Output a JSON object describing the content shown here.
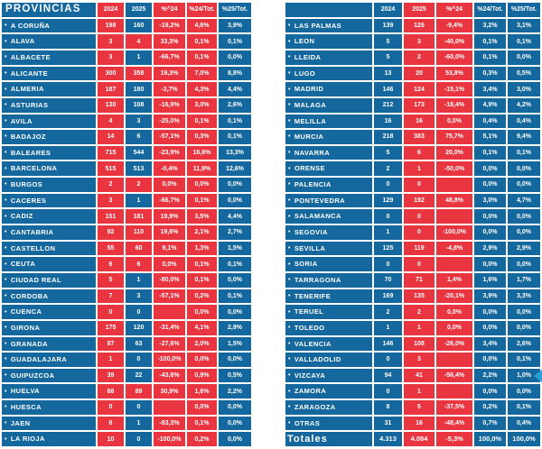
{
  "bullet": "•",
  "colors": {
    "cell_blue": "#15689d",
    "cell_red": "#e93540",
    "text": "#ffffff",
    "gridline": "#ffffff",
    "cursor_blue": "#2aa0d5"
  },
  "chart_data": [
    {
      "type": "table",
      "title": "PROVINCIAS",
      "columns": [
        "2024",
        "2025",
        "%^24",
        "%24/Tot.",
        "%25/Tot."
      ],
      "header_colors": [
        "blue",
        "red",
        "blue",
        "red",
        "red",
        "blue"
      ],
      "body_colors": {
        "y2024": "red",
        "y2025_up": "red",
        "y2025_down": "blue",
        "pct": "red",
        "share24": "red",
        "share25": "blue"
      },
      "rows": [
        {
          "name": "A CORUÑA",
          "y2024": "198",
          "y2025": "160",
          "pct": "-19,2%",
          "s24": "4,6%",
          "s25": "3,9%",
          "down": true
        },
        {
          "name": "ALAVA",
          "y2024": "3",
          "y2025": "4",
          "pct": "33,3%",
          "s24": "0,1%",
          "s25": "0,1%",
          "down": false
        },
        {
          "name": "ALBACETE",
          "y2024": "3",
          "y2025": "1",
          "pct": "-66,7%",
          "s24": "0,1%",
          "s25": "0,0%",
          "down": true
        },
        {
          "name": "ALICANTE",
          "y2024": "300",
          "y2025": "358",
          "pct": "19,3%",
          "s24": "7,0%",
          "s25": "8,8%",
          "down": false
        },
        {
          "name": "ALMERIA",
          "y2024": "187",
          "y2025": "180",
          "pct": "-3,7%",
          "s24": "4,3%",
          "s25": "4,4%",
          "down": true
        },
        {
          "name": "ASTURIAS",
          "y2024": "130",
          "y2025": "108",
          "pct": "-16,9%",
          "s24": "3,0%",
          "s25": "2,6%",
          "down": true
        },
        {
          "name": "AVILA",
          "y2024": "4",
          "y2025": "3",
          "pct": "-25,0%",
          "s24": "0,1%",
          "s25": "0,1%",
          "down": true
        },
        {
          "name": "BADAJOZ",
          "y2024": "14",
          "y2025": "6",
          "pct": "-57,1%",
          "s24": "0,3%",
          "s25": "0,1%",
          "down": true
        },
        {
          "name": "BALEARES",
          "y2024": "715",
          "y2025": "544",
          "pct": "-23,9%",
          "s24": "16,6%",
          "s25": "13,3%",
          "down": true
        },
        {
          "name": "BARCELONA",
          "y2024": "515",
          "y2025": "513",
          "pct": "-0,4%",
          "s24": "11,9%",
          "s25": "12,6%",
          "down": true
        },
        {
          "name": "BURGOS",
          "y2024": "2",
          "y2025": "2",
          "pct": "0,0%",
          "s24": "0,0%",
          "s25": "0,0%",
          "down": false
        },
        {
          "name": "CACERES",
          "y2024": "3",
          "y2025": "1",
          "pct": "-66,7%",
          "s24": "0,1%",
          "s25": "0,0%",
          "down": true
        },
        {
          "name": "CADIZ",
          "y2024": "151",
          "y2025": "181",
          "pct": "19,9%",
          "s24": "3,5%",
          "s25": "4,4%",
          "down": false
        },
        {
          "name": "CANTABRIA",
          "y2024": "92",
          "y2025": "110",
          "pct": "19,6%",
          "s24": "2,1%",
          "s25": "2,7%",
          "down": false
        },
        {
          "name": "CASTELLON",
          "y2024": "55",
          "y2025": "60",
          "pct": "9,1%",
          "s24": "1,3%",
          "s25": "1,5%",
          "down": false
        },
        {
          "name": "CEUTA",
          "y2024": "6",
          "y2025": "6",
          "pct": "0,0%",
          "s24": "0,1%",
          "s25": "0,1%",
          "down": false
        },
        {
          "name": "CIUDAD REAL",
          "y2024": "5",
          "y2025": "1",
          "pct": "-80,0%",
          "s24": "0,1%",
          "s25": "0,0%",
          "down": true
        },
        {
          "name": "CORDOBA",
          "y2024": "7",
          "y2025": "3",
          "pct": "-57,1%",
          "s24": "0,2%",
          "s25": "0,1%",
          "down": true
        },
        {
          "name": "CUENCA",
          "y2024": "0",
          "y2025": "0",
          "pct": "",
          "s24": "0,0%",
          "s25": "0,0%",
          "down": true
        },
        {
          "name": "GIRONA",
          "y2024": "175",
          "y2025": "120",
          "pct": "-31,4%",
          "s24": "4,1%",
          "s25": "2,9%",
          "down": true
        },
        {
          "name": "GRANADA",
          "y2024": "87",
          "y2025": "63",
          "pct": "-27,6%",
          "s24": "2,0%",
          "s25": "1,5%",
          "down": true
        },
        {
          "name": "GUADALAJARA",
          "y2024": "1",
          "y2025": "0",
          "pct": "-100,0%",
          "s24": "0,0%",
          "s25": "0,0%",
          "down": true
        },
        {
          "name": "GUIPUZCOA",
          "y2024": "39",
          "y2025": "22",
          "pct": "-43,6%",
          "s24": "0,9%",
          "s25": "0,5%",
          "down": true
        },
        {
          "name": "HUELVA",
          "y2024": "68",
          "y2025": "89",
          "pct": "30,9%",
          "s24": "1,6%",
          "s25": "2,2%",
          "down": false
        },
        {
          "name": "HUESCA",
          "y2024": "0",
          "y2025": "0",
          "pct": "",
          "s24": "0,0%",
          "s25": "0,0%",
          "down": true
        },
        {
          "name": "JAEN",
          "y2024": "6",
          "y2025": "1",
          "pct": "-83,3%",
          "s24": "0,1%",
          "s25": "0,0%",
          "down": true
        },
        {
          "name": "LA RIOJA",
          "y2024": "10",
          "y2025": "0",
          "pct": "-100,0%",
          "s24": "0,2%",
          "s25": "0,0%",
          "down": true
        }
      ]
    },
    {
      "type": "table",
      "title": "",
      "columns": [
        "2024",
        "2025",
        "%^24",
        "%24/Tot.",
        "%25/Tot."
      ],
      "header_colors": [
        "blue",
        "blue",
        "red",
        "red",
        "blue",
        "blue"
      ],
      "body_colors": {
        "y2024": "blue",
        "y2025_up": "red",
        "y2025_down": "red",
        "pct": "red",
        "share24": "blue",
        "share25": "blue"
      },
      "rows": [
        {
          "name": "LAS PALMAS",
          "y2024": "139",
          "y2025": "126",
          "pct": "-9,4%",
          "s24": "3,2%",
          "s25": "3,1%",
          "down": true
        },
        {
          "name": "LEON",
          "y2024": "5",
          "y2025": "3",
          "pct": "-40,0%",
          "s24": "0,1%",
          "s25": "0,1%",
          "down": true
        },
        {
          "name": "LLEIDA",
          "y2024": "5",
          "y2025": "2",
          "pct": "-60,0%",
          "s24": "0,1%",
          "s25": "0,0%",
          "down": true
        },
        {
          "name": "LUGO",
          "y2024": "13",
          "y2025": "20",
          "pct": "53,8%",
          "s24": "0,3%",
          "s25": "0,5%",
          "down": false
        },
        {
          "name": "MADRID",
          "y2024": "146",
          "y2025": "124",
          "pct": "-15,1%",
          "s24": "3,4%",
          "s25": "3,0%",
          "down": true
        },
        {
          "name": "MALAGA",
          "y2024": "212",
          "y2025": "173",
          "pct": "-18,4%",
          "s24": "4,9%",
          "s25": "4,2%",
          "down": true
        },
        {
          "name": "MELILLA",
          "y2024": "16",
          "y2025": "16",
          "pct": "0,0%",
          "s24": "0,4%",
          "s25": "0,4%",
          "down": false
        },
        {
          "name": "MURCIA",
          "y2024": "218",
          "y2025": "383",
          "pct": "75,7%",
          "s24": "5,1%",
          "s25": "9,4%",
          "down": false
        },
        {
          "name": "NAVARRA",
          "y2024": "5",
          "y2025": "6",
          "pct": "20,0%",
          "s24": "0,1%",
          "s25": "0,1%",
          "down": false
        },
        {
          "name": "ORENSE",
          "y2024": "2",
          "y2025": "1",
          "pct": "-50,0%",
          "s24": "0,0%",
          "s25": "0,0%",
          "down": true
        },
        {
          "name": "PALENCIA",
          "y2024": "0",
          "y2025": "0",
          "pct": "",
          "s24": "0,0%",
          "s25": "0,0%",
          "down": false
        },
        {
          "name": "PONTEVEDRA",
          "y2024": "129",
          "y2025": "192",
          "pct": "48,8%",
          "s24": "3,0%",
          "s25": "4,7%",
          "down": false
        },
        {
          "name": "SALAMANCA",
          "y2024": "0",
          "y2025": "0",
          "pct": "",
          "s24": "0,0%",
          "s25": "0,0%",
          "down": false
        },
        {
          "name": "SEGOVIA",
          "y2024": "1",
          "y2025": "0",
          "pct": "-100,0%",
          "s24": "0,0%",
          "s25": "0,0%",
          "down": true
        },
        {
          "name": "SEVILLA",
          "y2024": "125",
          "y2025": "119",
          "pct": "-4,8%",
          "s24": "2,9%",
          "s25": "2,9%",
          "down": true
        },
        {
          "name": "SORIA",
          "y2024": "0",
          "y2025": "0",
          "pct": "",
          "s24": "0,0%",
          "s25": "0,0%",
          "down": false
        },
        {
          "name": "TARRAGONA",
          "y2024": "70",
          "y2025": "71",
          "pct": "1,4%",
          "s24": "1,6%",
          "s25": "1,7%",
          "down": false
        },
        {
          "name": "TENERIFE",
          "y2024": "169",
          "y2025": "135",
          "pct": "-20,1%",
          "s24": "3,9%",
          "s25": "3,3%",
          "down": true
        },
        {
          "name": "TERUEL",
          "y2024": "2",
          "y2025": "2",
          "pct": "0,0%",
          "s24": "0,0%",
          "s25": "0,0%",
          "down": false
        },
        {
          "name": "TOLEDO",
          "y2024": "1",
          "y2025": "1",
          "pct": "0,0%",
          "s24": "0,0%",
          "s25": "0,0%",
          "down": false
        },
        {
          "name": "VALENCIA",
          "y2024": "146",
          "y2025": "108",
          "pct": "-26,0%",
          "s24": "3,4%",
          "s25": "2,6%",
          "down": true
        },
        {
          "name": "VALLADOLID",
          "y2024": "0",
          "y2025": "3",
          "pct": "",
          "s24": "0,0%",
          "s25": "0,1%",
          "down": false
        },
        {
          "name": "VIZCAYA",
          "y2024": "94",
          "y2025": "41",
          "pct": "-56,4%",
          "s24": "2,2%",
          "s25": "1,0%",
          "down": true
        },
        {
          "name": "ZAMORA",
          "y2024": "0",
          "y2025": "1",
          "pct": "",
          "s24": "0,0%",
          "s25": "0,0%",
          "down": false
        },
        {
          "name": "ZARAGOZA",
          "y2024": "8",
          "y2025": "5",
          "pct": "-37,5%",
          "s24": "0,2%",
          "s25": "0,1%",
          "down": true
        },
        {
          "name": "OTRAS",
          "y2024": "31",
          "y2025": "16",
          "pct": "-48,4%",
          "s24": "0,7%",
          "s25": "0,4%",
          "down": true
        }
      ],
      "totals": {
        "name": "Totales",
        "y2024": "4.313",
        "y2025": "4.084",
        "pct": "-5,3%",
        "s24": "100,0%",
        "s25": "100,0%",
        "colors": [
          "blue",
          "blue",
          "red",
          "red",
          "blue",
          "blue"
        ]
      }
    }
  ]
}
